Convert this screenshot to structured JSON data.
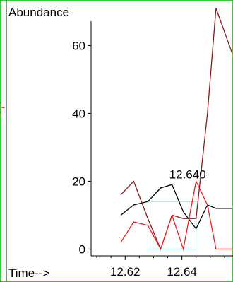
{
  "chart_data": {
    "type": "line",
    "title": "",
    "ylabel": "Abundance",
    "xlabel": "Time-->",
    "xlim": [
      12.608,
      12.658
    ],
    "ylim": [
      -2,
      73
    ],
    "x_ticks": [
      12.62,
      12.64
    ],
    "y_ticks": [
      0,
      20,
      40,
      60
    ],
    "grid": false,
    "legend": "none",
    "annotations": [
      {
        "text": "12.640",
        "x": 12.642,
        "y": 20
      }
    ],
    "highlight": {
      "x_start": 12.628,
      "x_end": 12.645,
      "y_bottom": 0,
      "y_top": 14,
      "color": "#7fe0f0"
    },
    "left_edge_mark": {
      "text": "(-",
      "color": "#ff3030"
    },
    "series": [
      {
        "color": "#000000",
        "x": [
          12.6185,
          12.623,
          12.628,
          12.6325,
          12.6365,
          12.6405,
          12.645,
          12.649,
          12.652,
          12.658
        ],
        "y": [
          10,
          13,
          14,
          18,
          19,
          11,
          6,
          13,
          12,
          12
        ]
      },
      {
        "color": "#8b1a1a",
        "x": [
          12.6185,
          12.623,
          12.628,
          12.6325,
          12.6365,
          12.6405,
          12.645,
          12.649,
          12.652,
          12.658
        ],
        "y": [
          16,
          20,
          9,
          0,
          10,
          9,
          9,
          40,
          71,
          57
        ]
      },
      {
        "color": "#ee1c1c",
        "x": [
          12.6185,
          12.623,
          12.628,
          12.6325,
          12.6365,
          12.6405,
          12.645,
          12.649,
          12.652,
          12.658
        ],
        "y": [
          2,
          8,
          7,
          0,
          10,
          0,
          20,
          13,
          0,
          0
        ]
      }
    ]
  }
}
